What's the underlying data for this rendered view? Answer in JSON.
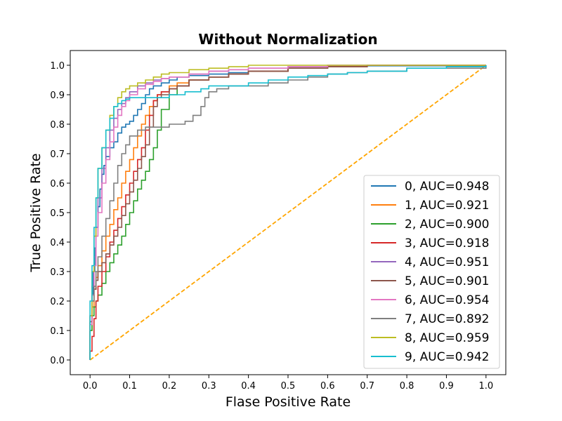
{
  "chart_data": {
    "type": "line",
    "title": "Without Normalization",
    "xlabel": "Flase Positive Rate",
    "ylabel": "True Positive Rate",
    "xlim": [
      -0.05,
      1.05
    ],
    "ylim": [
      -0.05,
      1.05
    ],
    "xticks": [
      "0.0",
      "0.1",
      "0.2",
      "0.3",
      "0.4",
      "0.5",
      "0.6",
      "0.7",
      "0.8",
      "0.9",
      "1.0"
    ],
    "yticks": [
      "0.0",
      "0.1",
      "0.2",
      "0.3",
      "0.4",
      "0.5",
      "0.6",
      "0.7",
      "0.8",
      "0.9",
      "1.0"
    ],
    "grid": false,
    "legend_position": "lower right",
    "diagonal": {
      "color": "#ffa500",
      "style": "dashed",
      "x": [
        0,
        1
      ],
      "y": [
        0,
        1
      ]
    },
    "series": [
      {
        "name": "0, AUC=0.948",
        "color": "#1f77b4",
        "x": [
          0,
          0,
          0.005,
          0.008,
          0.012,
          0.015,
          0.02,
          0.025,
          0.03,
          0.035,
          0.04,
          0.05,
          0.06,
          0.07,
          0.08,
          0.09,
          0.1,
          0.11,
          0.12,
          0.13,
          0.14,
          0.15,
          0.16,
          0.18,
          0.2,
          0.22,
          0.25,
          0.3,
          0.35,
          0.4,
          0.5,
          0.6,
          0.7,
          1.0
        ],
        "y": [
          0,
          0.13,
          0.22,
          0.3,
          0.38,
          0.45,
          0.52,
          0.58,
          0.63,
          0.66,
          0.69,
          0.72,
          0.74,
          0.77,
          0.79,
          0.8,
          0.81,
          0.83,
          0.85,
          0.87,
          0.9,
          0.92,
          0.93,
          0.94,
          0.95,
          0.96,
          0.965,
          0.97,
          0.975,
          0.98,
          0.99,
          0.995,
          0.998,
          1.0
        ]
      },
      {
        "name": "1, AUC=0.921",
        "color": "#ff7f0e",
        "x": [
          0,
          0,
          0.005,
          0.01,
          0.015,
          0.02,
          0.03,
          0.04,
          0.05,
          0.06,
          0.07,
          0.08,
          0.09,
          0.1,
          0.11,
          0.12,
          0.13,
          0.14,
          0.15,
          0.16,
          0.17,
          0.18,
          0.2,
          0.22,
          0.25,
          0.3,
          0.35,
          0.4,
          0.5,
          0.6,
          0.7,
          1.0
        ],
        "y": [
          0,
          0.1,
          0.18,
          0.24,
          0.28,
          0.32,
          0.37,
          0.42,
          0.46,
          0.51,
          0.55,
          0.6,
          0.64,
          0.68,
          0.72,
          0.76,
          0.8,
          0.83,
          0.86,
          0.88,
          0.9,
          0.91,
          0.93,
          0.94,
          0.95,
          0.96,
          0.97,
          0.98,
          0.99,
          0.995,
          1.0,
          1.0
        ]
      },
      {
        "name": "2, AUC=0.900",
        "color": "#2ca02c",
        "x": [
          0,
          0,
          0.005,
          0.01,
          0.015,
          0.02,
          0.03,
          0.04,
          0.05,
          0.06,
          0.07,
          0.08,
          0.09,
          0.1,
          0.11,
          0.12,
          0.13,
          0.14,
          0.15,
          0.16,
          0.17,
          0.18,
          0.2,
          0.22,
          0.25,
          0.3,
          0.35,
          0.4,
          0.5,
          0.6,
          0.7,
          1.0
        ],
        "y": [
          0,
          0.1,
          0.15,
          0.18,
          0.2,
          0.22,
          0.26,
          0.3,
          0.33,
          0.36,
          0.39,
          0.42,
          0.46,
          0.5,
          0.54,
          0.58,
          0.61,
          0.64,
          0.68,
          0.72,
          0.78,
          0.85,
          0.9,
          0.93,
          0.95,
          0.96,
          0.97,
          0.98,
          0.99,
          0.995,
          1.0,
          1.0
        ]
      },
      {
        "name": "3, AUC=0.918",
        "color": "#d62728",
        "x": [
          0,
          0,
          0.005,
          0.01,
          0.015,
          0.02,
          0.03,
          0.04,
          0.05,
          0.06,
          0.07,
          0.08,
          0.09,
          0.1,
          0.11,
          0.12,
          0.13,
          0.14,
          0.15,
          0.16,
          0.17,
          0.18,
          0.2,
          0.22,
          0.25,
          0.3,
          0.35,
          0.4,
          0.5,
          0.6,
          0.7,
          1.0
        ],
        "y": [
          0,
          0.03,
          0.08,
          0.14,
          0.2,
          0.25,
          0.3,
          0.35,
          0.4,
          0.44,
          0.48,
          0.52,
          0.56,
          0.6,
          0.64,
          0.68,
          0.72,
          0.78,
          0.83,
          0.88,
          0.9,
          0.91,
          0.92,
          0.93,
          0.95,
          0.96,
          0.97,
          0.98,
          0.99,
          0.995,
          1.0,
          1.0
        ]
      },
      {
        "name": "4, AUC=0.951",
        "color": "#9467bd",
        "x": [
          0,
          0,
          0.005,
          0.01,
          0.015,
          0.02,
          0.03,
          0.04,
          0.05,
          0.06,
          0.07,
          0.08,
          0.09,
          0.1,
          0.12,
          0.14,
          0.16,
          0.18,
          0.2,
          0.25,
          0.3,
          0.35,
          0.4,
          0.5,
          0.6,
          0.7,
          1.0
        ],
        "y": [
          0,
          0.15,
          0.25,
          0.35,
          0.45,
          0.55,
          0.65,
          0.72,
          0.78,
          0.82,
          0.85,
          0.87,
          0.89,
          0.91,
          0.93,
          0.94,
          0.95,
          0.955,
          0.96,
          0.97,
          0.98,
          0.985,
          0.99,
          0.995,
          1.0,
          1.0,
          1.0
        ]
      },
      {
        "name": "5, AUC=0.901",
        "color": "#8c564b",
        "x": [
          0,
          0,
          0.005,
          0.01,
          0.015,
          0.02,
          0.03,
          0.04,
          0.05,
          0.06,
          0.07,
          0.08,
          0.09,
          0.1,
          0.11,
          0.12,
          0.13,
          0.14,
          0.15,
          0.16,
          0.17,
          0.18,
          0.2,
          0.22,
          0.25,
          0.3,
          0.35,
          0.4,
          0.5,
          0.6,
          0.7,
          1.0
        ],
        "y": [
          0,
          0.13,
          0.2,
          0.24,
          0.27,
          0.3,
          0.33,
          0.36,
          0.39,
          0.42,
          0.45,
          0.49,
          0.53,
          0.57,
          0.61,
          0.65,
          0.69,
          0.73,
          0.79,
          0.86,
          0.89,
          0.9,
          0.92,
          0.93,
          0.95,
          0.96,
          0.97,
          0.98,
          0.99,
          0.995,
          1.0,
          1.0
        ]
      },
      {
        "name": "6, AUC=0.954",
        "color": "#e377c2",
        "x": [
          0,
          0,
          0.005,
          0.01,
          0.015,
          0.02,
          0.03,
          0.04,
          0.05,
          0.06,
          0.07,
          0.08,
          0.09,
          0.1,
          0.12,
          0.14,
          0.16,
          0.18,
          0.2,
          0.25,
          0.3,
          0.35,
          0.4,
          0.5,
          0.6,
          0.7,
          1.0
        ],
        "y": [
          0,
          0.12,
          0.22,
          0.32,
          0.42,
          0.5,
          0.6,
          0.68,
          0.74,
          0.79,
          0.83,
          0.86,
          0.88,
          0.9,
          0.92,
          0.935,
          0.945,
          0.955,
          0.96,
          0.97,
          0.98,
          0.985,
          0.99,
          0.995,
          1.0,
          1.0,
          1.0
        ]
      },
      {
        "name": "7, AUC=0.892",
        "color": "#7f7f7f",
        "x": [
          0,
          0,
          0.005,
          0.01,
          0.015,
          0.02,
          0.03,
          0.04,
          0.05,
          0.06,
          0.07,
          0.08,
          0.09,
          0.1,
          0.12,
          0.14,
          0.16,
          0.2,
          0.24,
          0.26,
          0.28,
          0.29,
          0.3,
          0.32,
          0.35,
          0.4,
          0.45,
          0.5,
          0.55,
          0.6,
          0.65,
          0.7,
          0.8,
          1.0
        ],
        "y": [
          0,
          0.15,
          0.2,
          0.25,
          0.3,
          0.35,
          0.42,
          0.48,
          0.54,
          0.6,
          0.66,
          0.7,
          0.73,
          0.76,
          0.78,
          0.79,
          0.79,
          0.8,
          0.81,
          0.83,
          0.86,
          0.89,
          0.91,
          0.92,
          0.93,
          0.93,
          0.94,
          0.95,
          0.96,
          0.97,
          0.975,
          0.98,
          0.99,
          1.0
        ]
      },
      {
        "name": "8, AUC=0.959",
        "color": "#bcbd22",
        "x": [
          0,
          0,
          0.005,
          0.01,
          0.015,
          0.02,
          0.03,
          0.04,
          0.05,
          0.06,
          0.07,
          0.08,
          0.09,
          0.1,
          0.12,
          0.14,
          0.16,
          0.18,
          0.2,
          0.25,
          0.3,
          0.35,
          0.4,
          0.5,
          0.6,
          0.7,
          1.0
        ],
        "y": [
          0,
          0.15,
          0.3,
          0.42,
          0.55,
          0.65,
          0.72,
          0.78,
          0.83,
          0.86,
          0.89,
          0.91,
          0.92,
          0.93,
          0.94,
          0.95,
          0.96,
          0.97,
          0.975,
          0.985,
          0.99,
          0.995,
          1.0,
          1.0,
          1.0,
          1.0,
          1.0
        ]
      },
      {
        "name": "9, AUC=0.942",
        "color": "#17becf",
        "x": [
          0,
          0,
          0.005,
          0.01,
          0.015,
          0.02,
          0.03,
          0.04,
          0.05,
          0.06,
          0.07,
          0.08,
          0.09,
          0.1,
          0.12,
          0.14,
          0.16,
          0.2,
          0.24,
          0.28,
          0.3,
          0.33,
          0.35,
          0.4,
          0.45,
          0.5,
          0.55,
          0.6,
          0.65,
          0.7,
          0.8,
          0.9,
          1.0
        ],
        "y": [
          0,
          0.2,
          0.32,
          0.45,
          0.55,
          0.65,
          0.72,
          0.78,
          0.82,
          0.86,
          0.87,
          0.88,
          0.885,
          0.89,
          0.89,
          0.89,
          0.89,
          0.9,
          0.91,
          0.92,
          0.93,
          0.93,
          0.93,
          0.94,
          0.95,
          0.96,
          0.965,
          0.97,
          0.975,
          0.98,
          0.99,
          0.995,
          1.0
        ]
      }
    ]
  }
}
